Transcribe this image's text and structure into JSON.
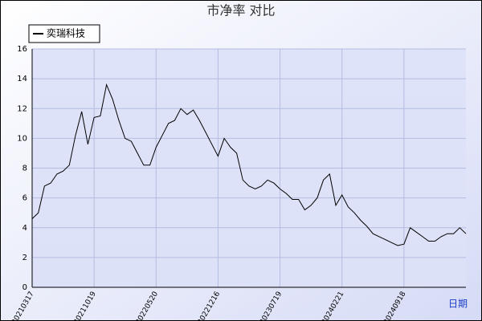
{
  "chart_data": {
    "type": "line",
    "title": "市净率  对比",
    "xlabel": "日期",
    "categories": [
      "20210317",
      null,
      null,
      null,
      null,
      null,
      null,
      null,
      null,
      null,
      "20211019",
      null,
      null,
      null,
      null,
      null,
      null,
      null,
      null,
      null,
      "20220520",
      null,
      null,
      null,
      null,
      null,
      null,
      null,
      null,
      null,
      "20221216",
      null,
      null,
      null,
      null,
      null,
      null,
      null,
      null,
      null,
      "20230719",
      null,
      null,
      null,
      null,
      null,
      null,
      null,
      null,
      null,
      "20240221",
      null,
      null,
      null,
      null,
      null,
      null,
      null,
      null,
      null,
      "20240918",
      null,
      null,
      null,
      null,
      null,
      null,
      null,
      null,
      null,
      null
    ],
    "series": [
      {
        "name": "奕瑞科技",
        "color": "#000000",
        "values": [
          4.6,
          5.0,
          6.8,
          7.0,
          7.6,
          7.8,
          8.2,
          10.2,
          11.8,
          9.6,
          11.4,
          11.5,
          13.6,
          12.6,
          11.2,
          10.0,
          9.8,
          9.0,
          8.2,
          8.2,
          9.4,
          10.2,
          11.0,
          11.2,
          12.0,
          11.6,
          11.9,
          11.2,
          10.4,
          9.6,
          8.8,
          10.0,
          9.4,
          9.0,
          7.2,
          6.8,
          6.6,
          6.8,
          7.2,
          7.0,
          6.6,
          6.3,
          5.9,
          5.9,
          5.2,
          5.5,
          6.0,
          7.2,
          7.6,
          5.5,
          6.2,
          5.4,
          5.0,
          4.5,
          4.1,
          3.6,
          3.4,
          3.2,
          3.0,
          2.8,
          2.9,
          4.0,
          3.7,
          3.4,
          3.1,
          3.1,
          3.4,
          3.6,
          3.6,
          4.0,
          3.6
        ]
      }
    ],
    "ylim": [
      0,
      16
    ],
    "yticks": [
      0,
      2,
      4,
      6,
      8,
      10,
      12,
      14,
      16
    ],
    "grid": true,
    "legend": "top-left"
  }
}
